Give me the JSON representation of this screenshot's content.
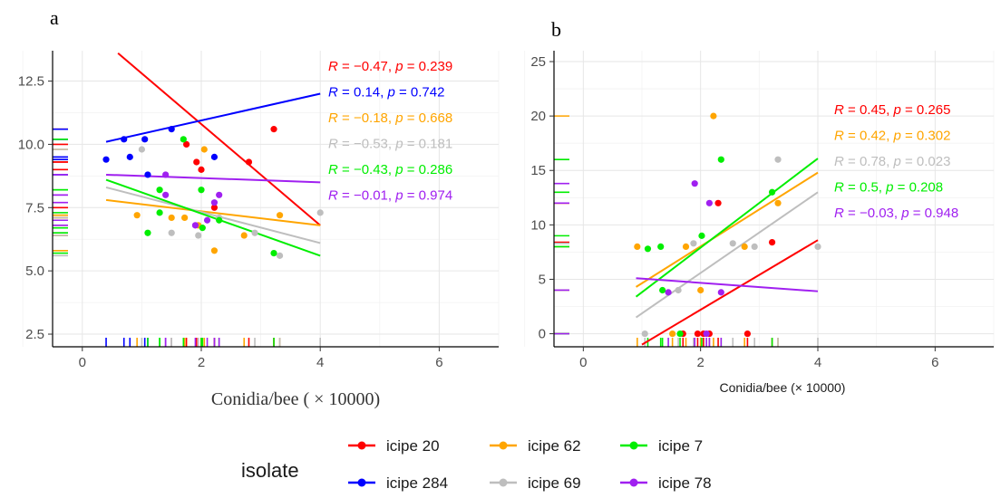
{
  "chart_data": [
    {
      "panel_label": "a",
      "type": "scatter",
      "xlabel": "Conidia/bee ( × 10000)",
      "ylabel": "",
      "xlim": [
        -0.5,
        7
      ],
      "ylim": [
        2.0,
        13.7
      ],
      "x_ticks": [
        0,
        2,
        4,
        6
      ],
      "y_ticks": [
        2.5,
        5.0,
        7.5,
        10.0,
        12.5
      ],
      "x_tick_labels": [
        "0",
        "2",
        "4",
        "6"
      ],
      "y_tick_labels": [
        "2.5",
        "5.0",
        "7.5",
        "10.0",
        "12.5"
      ],
      "grid": true,
      "series": [
        {
          "name": "icipe 20",
          "color": "#ff0000",
          "points": [
            [
              1.75,
              10.0
            ],
            [
              1.92,
              9.3
            ],
            [
              2.0,
              9.0
            ],
            [
              2.22,
              7.5
            ],
            [
              2.8,
              9.3
            ],
            [
              3.22,
              10.6
            ]
          ],
          "line": [
            [
              0.6,
              13.6
            ],
            [
              4.0,
              6.8
            ]
          ],
          "rug_y": [
            10.6,
            10.0,
            9.3,
            9.3,
            9.0,
            7.5
          ],
          "annotation": {
            "R": "R",
            "rest": " = −0.47, p = 0.239"
          }
        },
        {
          "name": "icipe 284",
          "color": "#0000ff",
          "points": [
            [
              0.4,
              9.4
            ],
            [
              0.7,
              10.2
            ],
            [
              0.8,
              9.5
            ],
            [
              1.05,
              10.2
            ],
            [
              1.1,
              8.8
            ],
            [
              1.5,
              10.6
            ],
            [
              2.22,
              9.5
            ]
          ],
          "line": [
            [
              0.4,
              10.1
            ],
            [
              4.0,
              12.0
            ]
          ],
          "rug_y": [
            10.6,
            10.2,
            10.2,
            9.5,
            9.5,
            9.4,
            8.8
          ],
          "annotation": {
            "R": "R",
            "rest": " = 0.14, p = 0.742"
          }
        },
        {
          "name": "icipe 62",
          "color": "#ffa500",
          "points": [
            [
              0.92,
              7.2
            ],
            [
              1.5,
              7.1
            ],
            [
              1.72,
              7.1
            ],
            [
              1.95,
              6.8
            ],
            [
              2.05,
              9.8
            ],
            [
              2.22,
              5.8
            ],
            [
              2.72,
              6.4
            ],
            [
              3.32,
              7.2
            ]
          ],
          "line": [
            [
              0.4,
              7.8
            ],
            [
              4.0,
              6.8
            ]
          ],
          "rug_y": [
            9.8,
            7.2,
            7.2,
            7.1,
            7.1,
            6.8,
            6.4,
            5.8
          ],
          "annotation": {
            "R": "R",
            "rest": " = −0.18, p = 0.668"
          }
        },
        {
          "name": "icipe 69",
          "color": "#bebebe",
          "points": [
            [
              1.0,
              9.8
            ],
            [
              1.5,
              6.5
            ],
            [
              1.95,
              6.4
            ],
            [
              2.3,
              7.1
            ],
            [
              2.9,
              6.5
            ],
            [
              3.32,
              5.6
            ],
            [
              4.0,
              7.3
            ]
          ],
          "line": [
            [
              0.4,
              8.3
            ],
            [
              4.0,
              6.1
            ]
          ],
          "rug_y": [
            9.8,
            7.3,
            7.1,
            6.5,
            6.5,
            6.4,
            5.6
          ],
          "annotation": {
            "R": "R",
            "rest": " = −0.53, p = 0.181"
          }
        },
        {
          "name": "icipe 7",
          "color": "#00ee00",
          "points": [
            [
              1.1,
              6.5
            ],
            [
              1.3,
              7.3
            ],
            [
              1.3,
              8.2
            ],
            [
              1.7,
              10.2
            ],
            [
              2.0,
              8.2
            ],
            [
              2.02,
              6.7
            ],
            [
              2.3,
              7.0
            ],
            [
              3.22,
              5.7
            ]
          ],
          "line": [
            [
              0.4,
              8.6
            ],
            [
              4.0,
              5.6
            ]
          ],
          "rug_y": [
            10.2,
            8.2,
            8.2,
            7.3,
            7.0,
            6.7,
            6.5,
            5.7
          ],
          "annotation": {
            "R": "R",
            "rest": " = −0.43, p = 0.286"
          }
        },
        {
          "name": "icipe 78",
          "color": "#a020f0",
          "points": [
            [
              1.4,
              8.8
            ],
            [
              1.4,
              8.0
            ],
            [
              1.9,
              6.8
            ],
            [
              2.1,
              7.0
            ],
            [
              2.22,
              7.7
            ],
            [
              2.3,
              8.0
            ]
          ],
          "line": [
            [
              0.4,
              8.8
            ],
            [
              4.0,
              8.5
            ]
          ],
          "rug_y": [
            8.8,
            8.0,
            8.0,
            7.7,
            7.0,
            6.8
          ],
          "annotation": {
            "R": "R",
            "rest": " = −0.01, p = 0.974"
          }
        }
      ]
    },
    {
      "panel_label": "b",
      "type": "scatter",
      "xlabel": "Conidia/bee (× 10000)",
      "ylabel": "",
      "xlim": [
        -0.5,
        7
      ],
      "ylim": [
        -1.2,
        26
      ],
      "x_ticks": [
        0,
        2,
        4,
        6
      ],
      "y_ticks": [
        0,
        5,
        10,
        15,
        20,
        25
      ],
      "x_tick_labels": [
        "0",
        "2",
        "4",
        "6"
      ],
      "y_tick_labels": [
        "0",
        "5",
        "10",
        "15",
        "20",
        "25"
      ],
      "grid": true,
      "series": [
        {
          "name": "icipe 20",
          "color": "#ff0000",
          "points": [
            [
              1.7,
              0
            ],
            [
              1.95,
              0
            ],
            [
              2.05,
              0
            ],
            [
              2.15,
              0
            ],
            [
              2.3,
              12.0
            ],
            [
              2.8,
              0
            ],
            [
              3.22,
              8.4
            ]
          ],
          "line": [
            [
              1.0,
              -1.0
            ],
            [
              4.0,
              8.6
            ]
          ],
          "rug_y": [
            12.0,
            8.4,
            0
          ],
          "annotation": {
            "R": "R",
            "rest": " = 0.45, p = 0.265"
          }
        },
        {
          "name": "icipe 62",
          "color": "#ffa500",
          "points": [
            [
              0.92,
              8.0
            ],
            [
              1.52,
              0
            ],
            [
              1.75,
              8.0
            ],
            [
              2.0,
              4.0
            ],
            [
              2.22,
              20.0
            ],
            [
              2.75,
              8.0
            ],
            [
              3.32,
              12.0
            ]
          ],
          "line": [
            [
              0.9,
              4.3
            ],
            [
              4.0,
              14.8
            ]
          ],
          "rug_y": [
            20.0,
            12.0,
            8.0,
            4.0,
            0
          ],
          "annotation": {
            "R": "R",
            "rest": " = 0.42, p = 0.302"
          }
        },
        {
          "name": "icipe 69",
          "color": "#bebebe",
          "points": [
            [
              1.05,
              0
            ],
            [
              1.62,
              4.0
            ],
            [
              1.88,
              8.3
            ],
            [
              2.55,
              8.3
            ],
            [
              2.92,
              8.0
            ],
            [
              3.32,
              16.0
            ],
            [
              4.0,
              8.0
            ]
          ],
          "line": [
            [
              0.9,
              1.5
            ],
            [
              4.0,
              13.0
            ]
          ],
          "rug_y": [
            16.0,
            8.3,
            8.0,
            4.0,
            0
          ],
          "annotation": {
            "R": "R",
            "rest": " = 0.78, p = 0.023"
          }
        },
        {
          "name": "icipe 7",
          "color": "#00ee00",
          "points": [
            [
              1.1,
              7.8
            ],
            [
              1.32,
              8.0
            ],
            [
              1.35,
              4.0
            ],
            [
              1.65,
              0
            ],
            [
              2.02,
              9.0
            ],
            [
              2.35,
              16.0
            ],
            [
              3.22,
              13.0
            ]
          ],
          "line": [
            [
              0.9,
              3.4
            ],
            [
              4.0,
              16.1
            ]
          ],
          "rug_y": [
            16.0,
            13.0,
            9.0,
            8.0,
            0
          ],
          "annotation": {
            "R": "R",
            "rest": " = 0.5, p = 0.208"
          }
        },
        {
          "name": "icipe 78",
          "color": "#a020f0",
          "points": [
            [
              1.45,
              3.8
            ],
            [
              1.9,
              13.8
            ],
            [
              2.1,
              0
            ],
            [
              2.15,
              12.0
            ],
            [
              2.35,
              3.8
            ]
          ],
          "line": [
            [
              0.9,
              5.1
            ],
            [
              4.0,
              3.9
            ]
          ],
          "rug_y": [
            13.8,
            12.0,
            4.0,
            0
          ],
          "annotation": {
            "R": "R",
            "rest": " = −0.03, p = 0.948"
          }
        }
      ]
    }
  ],
  "legend": {
    "title": "isolate",
    "entries": [
      {
        "name": "icipe 20",
        "color": "#ff0000"
      },
      {
        "name": "icipe 62",
        "color": "#ffa500"
      },
      {
        "name": "icipe 7",
        "color": "#00ee00"
      },
      {
        "name": "icipe 284",
        "color": "#0000ff"
      },
      {
        "name": "icipe 69",
        "color": "#bebebe"
      },
      {
        "name": "icipe 78",
        "color": "#a020f0"
      }
    ]
  }
}
